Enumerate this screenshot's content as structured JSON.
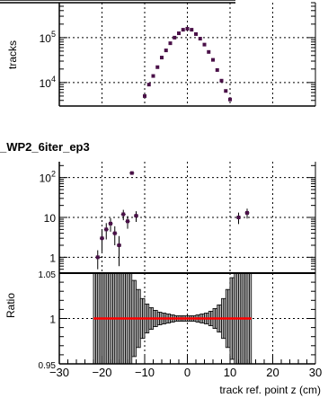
{
  "chart_data": [
    {
      "type": "scatter",
      "panel": "top",
      "title": "",
      "ylabel": "tracks",
      "xlim": [
        -30,
        30
      ],
      "ylim": [
        3000,
        600000
      ],
      "yscale": "log",
      "grid": true,
      "y_ticks": [
        {
          "value": 10000,
          "base": "10",
          "exp": "4"
        },
        {
          "value": 100000,
          "base": "10",
          "exp": "5"
        }
      ],
      "series": [
        {
          "color": "#4a1048",
          "x": [
            -10,
            -9,
            -8,
            -7,
            -6,
            -5,
            -4,
            -3,
            -2,
            -1,
            0,
            1,
            2,
            3,
            4,
            5,
            6,
            7,
            8,
            9,
            10
          ],
          "y": [
            5000,
            9000,
            14000,
            22000,
            36000,
            52000,
            75000,
            100000,
            125000,
            150000,
            158000,
            150000,
            120000,
            95000,
            70000,
            48000,
            32000,
            19000,
            11000,
            6500,
            4200
          ]
        }
      ]
    },
    {
      "type": "scatter",
      "panel": "middle",
      "title": "_WP2_6iter_ep3",
      "xlim": [
        -30,
        30
      ],
      "ylim": [
        0.4,
        250
      ],
      "yscale": "log",
      "grid": true,
      "y_ticks": [
        {
          "value": 1,
          "label": "1"
        },
        {
          "value": 10,
          "label": "10"
        },
        {
          "value": 100,
          "base": "10",
          "exp": "2"
        }
      ],
      "series": [
        {
          "color": "#4a1048",
          "x": [
            -21,
            -20,
            -19,
            -18,
            -17,
            -16,
            -15,
            -14,
            -13,
            -12,
            12,
            14
          ],
          "y": [
            1,
            3,
            5,
            7,
            4,
            2,
            12,
            8,
            130,
            11,
            10,
            13
          ],
          "err": [
            0.5,
            1.6,
            2.2,
            2.6,
            2,
            1.4,
            3.5,
            2.8,
            11,
            3.3,
            3.2,
            3.6
          ]
        }
      ]
    },
    {
      "type": "scatter",
      "panel": "ratio",
      "ylabel": "Ratio",
      "xlabel": "track ref. point z (cm)",
      "xlim": [
        -30,
        30
      ],
      "ylim": [
        0.95,
        1.05
      ],
      "grid": true,
      "x_ticks": [
        "−30",
        "−20",
        "−10",
        "0",
        "10",
        "20",
        "30"
      ],
      "y_ticks": [
        {
          "value": 0.95,
          "label": "0.95"
        },
        {
          "value": 1,
          "label": "1"
        },
        {
          "value": 1.05,
          "label": "1.05"
        }
      ],
      "reference_line": {
        "y": 1,
        "color": "#ff0000",
        "x_range": [
          -22,
          15
        ]
      },
      "series": [
        {
          "color": "#000000",
          "x": [
            -21.5,
            -20.5,
            -19.5,
            -18.5,
            -17.5,
            -16.5,
            -15.5,
            -14.5,
            -13.5,
            -12.5,
            -11.5,
            -10.5,
            -9.5,
            -8.5,
            -7.5,
            -6.5,
            -5.5,
            -4.5,
            -3.5,
            -2.5,
            -1.5,
            -0.5,
            0.5,
            1.5,
            2.5,
            3.5,
            4.5,
            5.5,
            6.5,
            7.5,
            8.5,
            9.5,
            10.5,
            11.5,
            12.5,
            13.5,
            14.5
          ],
          "y": [
            1,
            1,
            1,
            1,
            1,
            1,
            1,
            1,
            1,
            1,
            1,
            1,
            1,
            1,
            1,
            1,
            1,
            1,
            1,
            1,
            1,
            1,
            1,
            1,
            1,
            1,
            1,
            1,
            1,
            1,
            1,
            1,
            1,
            1,
            1,
            1,
            1
          ],
          "err": [
            0.06,
            0.06,
            0.06,
            0.06,
            0.06,
            0.06,
            0.06,
            0.06,
            0.06,
            0.042,
            0.032,
            0.022,
            0.016,
            0.012,
            0.009,
            0.007,
            0.006,
            0.005,
            0.004,
            0.003,
            0.003,
            0.003,
            0.003,
            0.003,
            0.004,
            0.005,
            0.006,
            0.008,
            0.011,
            0.015,
            0.022,
            0.032,
            0.045,
            0.06,
            0.06,
            0.06,
            0.06
          ]
        }
      ]
    }
  ]
}
